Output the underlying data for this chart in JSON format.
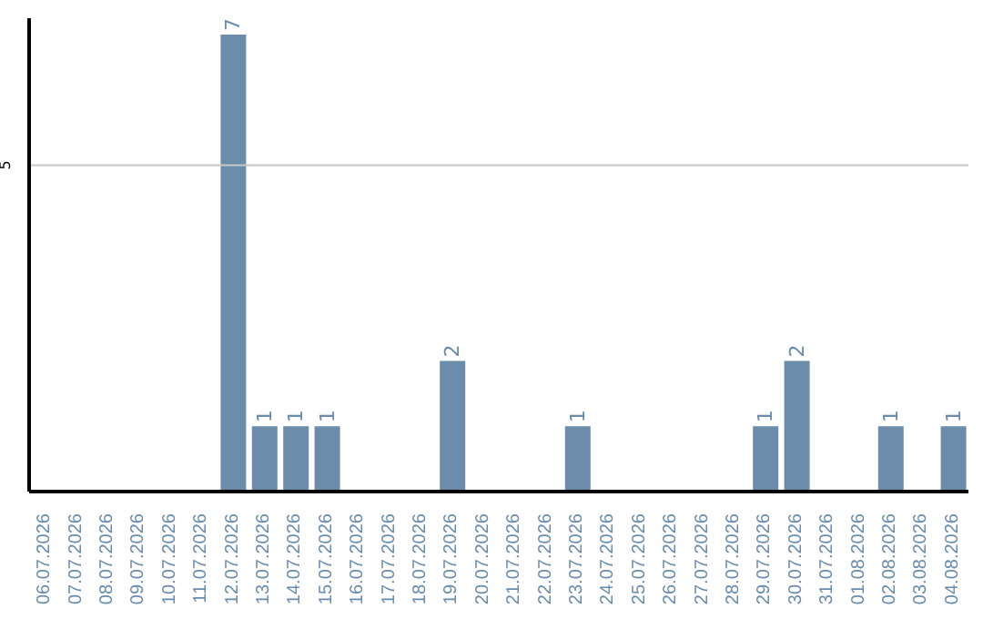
{
  "chart_data": {
    "type": "bar",
    "categories": [
      "06.07.2026",
      "07.07.2026",
      "08.07.2026",
      "09.07.2026",
      "10.07.2026",
      "11.07.2026",
      "12.07.2026",
      "13.07.2026",
      "14.07.2026",
      "15.07.2026",
      "16.07.2026",
      "17.07.2026",
      "18.07.2026",
      "19.07.2026",
      "20.07.2026",
      "21.07.2026",
      "22.07.2026",
      "23.07.2026",
      "24.07.2026",
      "25.07.2026",
      "26.07.2026",
      "27.07.2026",
      "28.07.2026",
      "29.07.2026",
      "30.07.2026",
      "31.07.2026",
      "01.08.2026",
      "02.08.2026",
      "03.08.2026",
      "04.08.2026"
    ],
    "values": [
      0,
      0,
      0,
      0,
      0,
      0,
      7,
      1,
      1,
      1,
      0,
      0,
      0,
      2,
      0,
      0,
      0,
      1,
      0,
      0,
      0,
      0,
      0,
      1,
      2,
      0,
      0,
      1,
      0,
      1
    ],
    "value_labels": [
      null,
      null,
      null,
      null,
      null,
      null,
      "7",
      "1",
      "1",
      "1",
      null,
      null,
      null,
      "2",
      null,
      null,
      null,
      "1",
      null,
      null,
      null,
      null,
      null,
      "1",
      "2",
      null,
      null,
      "1",
      null,
      "1"
    ],
    "color": "#6b8cab",
    "ylim": [
      0,
      7.25
    ],
    "yticks": [
      5
    ],
    "grid": "y"
  }
}
